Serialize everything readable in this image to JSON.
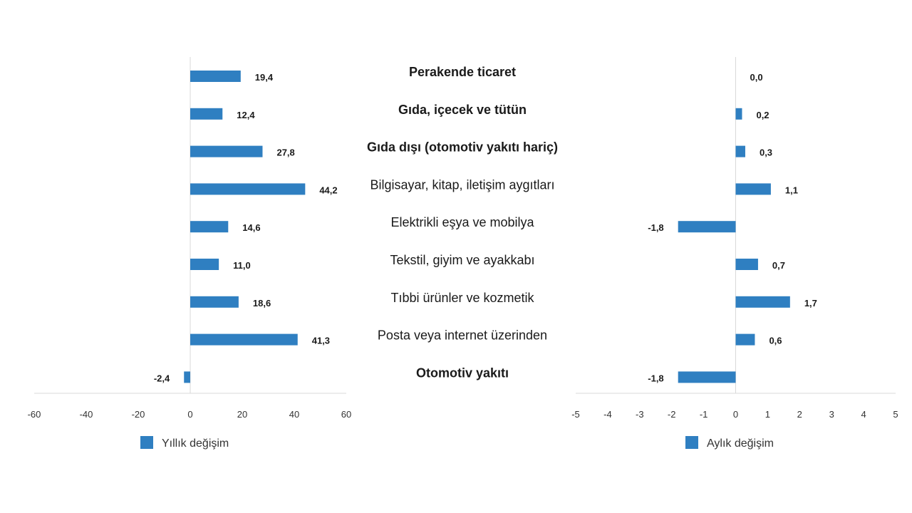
{
  "colors": {
    "bar": "#2f7fc1",
    "axis": "#d9d9d9",
    "text": "#1a1a1a"
  },
  "chart_data": [
    {
      "type": "bar",
      "orientation": "horizontal",
      "name": "Yıllık değişim",
      "categories": [
        "Perakende ticaret",
        "Gıda, içecek ve tütün",
        "Gıda dışı (otomotiv yakıtı hariç)",
        "Bilgisayar, kitap, iletişim aygıtları",
        "Elektrikli eşya ve mobilya",
        "Tekstil, giyim ve ayakkabı",
        "Tıbbi ürünler ve kozmetik",
        "Posta veya internet üzerinden",
        "Otomotiv yakıtı"
      ],
      "values": [
        19.4,
        12.4,
        27.8,
        44.2,
        14.6,
        11.0,
        18.6,
        41.3,
        -2.4
      ],
      "value_labels": [
        "19,4",
        "12,4",
        "27,8",
        "44,2",
        "14,6",
        "11,0",
        "18,6",
        "41,3",
        "-2,4"
      ],
      "xlim": [
        -60,
        60
      ],
      "xticks": [
        -60,
        -40,
        -20,
        0,
        20,
        40,
        60
      ],
      "xtick_labels": [
        "-60",
        "-40",
        "-20",
        "0",
        "20",
        "40",
        "60"
      ],
      "legend": "Yıllık değişim",
      "legend_position": "bottom-left"
    },
    {
      "type": "bar",
      "orientation": "horizontal",
      "name": "Aylık değişim",
      "categories": [
        "Perakende ticaret",
        "Gıda, içecek ve tütün",
        "Gıda dışı (otomotiv yakıtı hariç)",
        "Bilgisayar, kitap, iletişim aygıtları",
        "Elektrikli eşya ve mobilya",
        "Tekstil, giyim ve ayakkabı",
        "Tıbbi ürünler ve kozmetik",
        "Posta veya internet üzerinden",
        "Otomotiv yakıtı"
      ],
      "values": [
        0.0,
        0.2,
        0.3,
        1.1,
        -1.8,
        0.7,
        1.7,
        0.6,
        -1.8
      ],
      "value_labels": [
        "0,0",
        "0,2",
        "0,3",
        "1,1",
        "-1,8",
        "0,7",
        "1,7",
        "0,6",
        "-1,8"
      ],
      "xlim": [
        -5,
        5
      ],
      "xticks": [
        -5,
        -4,
        -3,
        -2,
        -1,
        0,
        1,
        2,
        3,
        4,
        5
      ],
      "xtick_labels": [
        "-5",
        "-4",
        "-3",
        "-2",
        "-1",
        "0",
        "1",
        "2",
        "3",
        "4",
        "5"
      ],
      "legend": "Aylık değişim",
      "legend_position": "bottom-left"
    }
  ],
  "category_labels": [
    {
      "text": "Perakende ticaret",
      "bold": true
    },
    {
      "text": "Gıda, içecek ve tütün",
      "bold": true
    },
    {
      "text": "Gıda dışı (otomotiv yakıtı hariç)",
      "bold": true
    },
    {
      "text": "Bilgisayar, kitap, iletişim aygıtları",
      "bold": false
    },
    {
      "text": "Elektrikli eşya ve mobilya",
      "bold": false
    },
    {
      "text": "Tekstil, giyim ve ayakkabı",
      "bold": false
    },
    {
      "text": "Tıbbi ürünler ve kozmetik",
      "bold": false
    },
    {
      "text": "Posta veya internet üzerinden",
      "bold": false
    },
    {
      "text": "Otomotiv yakıtı",
      "bold": true
    }
  ]
}
